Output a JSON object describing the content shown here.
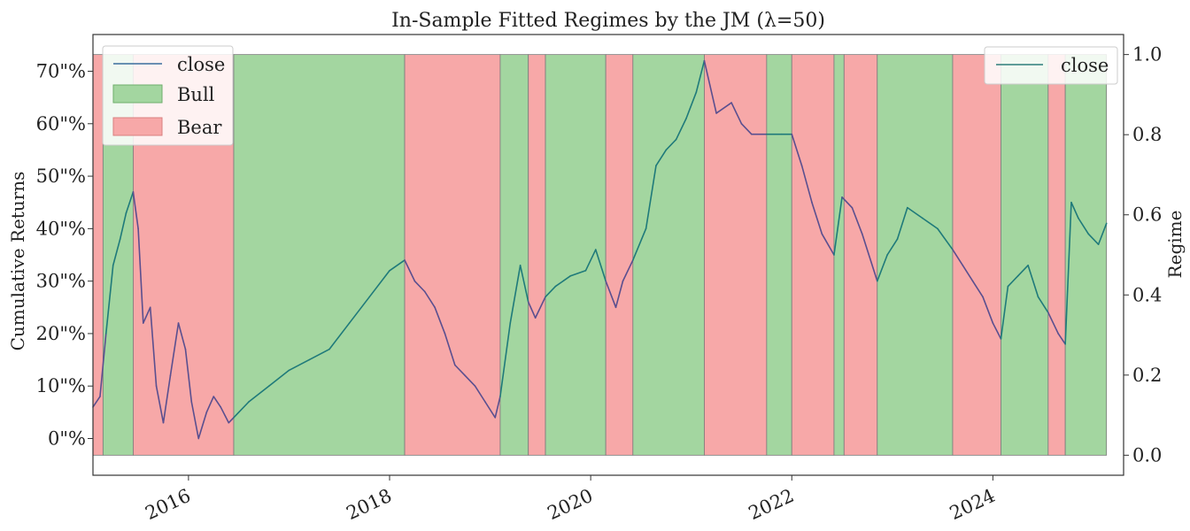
{
  "chart_data": {
    "type": "line",
    "title": "In-Sample Fitted Regimes by the JM (λ=50)",
    "xlabel": "",
    "ylabel": "Cumulative Returns",
    "ylabel_right": "Regime",
    "xlim": [
      2015.05,
      2025.3
    ],
    "ylim": [
      -0.07,
      0.77
    ],
    "ylim_right": [
      -0.05,
      1.05
    ],
    "x_ticks": [
      2016,
      2018,
      2020,
      2022,
      2024
    ],
    "x_tick_labels": [
      "2016",
      "2018",
      "2020",
      "2022",
      "2024"
    ],
    "y_ticks": [
      0.0,
      0.1,
      0.2,
      0.3,
      0.4,
      0.5,
      0.6,
      0.7
    ],
    "y_tick_labels": [
      "0\"%",
      "10\"%",
      "20\"%",
      "30\"%",
      "40\"%",
      "50\"%",
      "60\"%",
      "70\"%"
    ],
    "y_right_ticks": [
      0.0,
      0.2,
      0.4,
      0.6,
      0.8,
      1.0
    ],
    "y_right_tick_labels": [
      "0.0",
      "0.2",
      "0.4",
      "0.6",
      "0.8",
      "1.0"
    ],
    "legend_left": {
      "placement": "top-left",
      "entries": [
        {
          "label": "close",
          "kind": "line",
          "color": "#3a6e9e"
        },
        {
          "label": "Bull",
          "kind": "patch",
          "color": "#a3d6a0"
        },
        {
          "label": "Bear",
          "kind": "patch",
          "color": "#f7a8a8"
        }
      ]
    },
    "legend_right": {
      "placement": "top-right",
      "entries": [
        {
          "label": "close",
          "kind": "line",
          "color": "#2e7d7a"
        }
      ]
    },
    "colors": {
      "bull_fill": "#a3d6a0",
      "bear_fill": "#f7a8a8",
      "bull_line": "#1f7a7a",
      "bear_line": "#5a4f8f",
      "regime_edge": "#7a7a7a"
    },
    "regimes": [
      {
        "start": 2015.05,
        "end": 2015.15,
        "regime": "Bear"
      },
      {
        "start": 2015.15,
        "end": 2015.45,
        "regime": "Bull"
      },
      {
        "start": 2015.45,
        "end": 2016.45,
        "regime": "Bear"
      },
      {
        "start": 2016.45,
        "end": 2018.15,
        "regime": "Bull"
      },
      {
        "start": 2018.15,
        "end": 2019.1,
        "regime": "Bear"
      },
      {
        "start": 2019.1,
        "end": 2019.38,
        "regime": "Bull"
      },
      {
        "start": 2019.38,
        "end": 2019.55,
        "regime": "Bear"
      },
      {
        "start": 2019.55,
        "end": 2020.15,
        "regime": "Bull"
      },
      {
        "start": 2020.15,
        "end": 2020.42,
        "regime": "Bear"
      },
      {
        "start": 2020.42,
        "end": 2021.13,
        "regime": "Bull"
      },
      {
        "start": 2021.13,
        "end": 2021.75,
        "regime": "Bear"
      },
      {
        "start": 2021.75,
        "end": 2022.0,
        "regime": "Bull"
      },
      {
        "start": 2022.0,
        "end": 2022.42,
        "regime": "Bear"
      },
      {
        "start": 2022.42,
        "end": 2022.52,
        "regime": "Bull"
      },
      {
        "start": 2022.52,
        "end": 2022.85,
        "regime": "Bear"
      },
      {
        "start": 2022.85,
        "end": 2023.6,
        "regime": "Bull"
      },
      {
        "start": 2023.6,
        "end": 2024.08,
        "regime": "Bear"
      },
      {
        "start": 2024.08,
        "end": 2024.55,
        "regime": "Bull"
      },
      {
        "start": 2024.55,
        "end": 2024.72,
        "regime": "Bear"
      },
      {
        "start": 2024.72,
        "end": 2025.13,
        "regime": "Bull"
      }
    ],
    "series": [
      {
        "name": "close",
        "x": [
          2015.05,
          2015.12,
          2015.18,
          2015.25,
          2015.32,
          2015.38,
          2015.45,
          2015.5,
          2015.55,
          2015.62,
          2015.68,
          2015.75,
          2015.82,
          2015.9,
          2015.97,
          2016.03,
          2016.1,
          2016.18,
          2016.25,
          2016.32,
          2016.4,
          2016.45,
          2016.6,
          2016.8,
          2017.0,
          2017.2,
          2017.4,
          2017.6,
          2017.8,
          2018.0,
          2018.15,
          2018.25,
          2018.35,
          2018.45,
          2018.55,
          2018.65,
          2018.75,
          2018.85,
          2018.95,
          2019.05,
          2019.1,
          2019.2,
          2019.3,
          2019.38,
          2019.45,
          2019.55,
          2019.65,
          2019.8,
          2019.95,
          2020.05,
          2020.15,
          2020.25,
          2020.32,
          2020.42,
          2020.55,
          2020.65,
          2020.75,
          2020.85,
          2020.95,
          2021.05,
          2021.13,
          2021.25,
          2021.4,
          2021.5,
          2021.6,
          2021.75,
          2021.9,
          2022.0,
          2022.1,
          2022.2,
          2022.3,
          2022.42,
          2022.5,
          2022.6,
          2022.7,
          2022.85,
          2022.95,
          2023.05,
          2023.15,
          2023.3,
          2023.45,
          2023.6,
          2023.7,
          2023.8,
          2023.9,
          2024.0,
          2024.08,
          2024.15,
          2024.25,
          2024.35,
          2024.45,
          2024.55,
          2024.65,
          2024.72,
          2024.78,
          2024.85,
          2024.95,
          2025.05,
          2025.13
        ],
        "y": [
          0.06,
          0.08,
          0.2,
          0.33,
          0.38,
          0.43,
          0.47,
          0.4,
          0.22,
          0.25,
          0.1,
          0.03,
          0.12,
          0.22,
          0.17,
          0.07,
          0.0,
          0.05,
          0.08,
          0.06,
          0.03,
          0.04,
          0.07,
          0.1,
          0.13,
          0.15,
          0.17,
          0.22,
          0.27,
          0.32,
          0.34,
          0.3,
          0.28,
          0.25,
          0.2,
          0.14,
          0.12,
          0.1,
          0.07,
          0.04,
          0.08,
          0.22,
          0.33,
          0.26,
          0.23,
          0.27,
          0.29,
          0.31,
          0.32,
          0.36,
          0.3,
          0.25,
          0.3,
          0.34,
          0.4,
          0.52,
          0.55,
          0.57,
          0.61,
          0.66,
          0.72,
          0.62,
          0.64,
          0.6,
          0.58,
          0.58,
          0.58,
          0.58,
          0.52,
          0.45,
          0.39,
          0.35,
          0.46,
          0.44,
          0.39,
          0.3,
          0.35,
          0.38,
          0.44,
          0.42,
          0.4,
          0.36,
          0.33,
          0.3,
          0.27,
          0.22,
          0.19,
          0.29,
          0.31,
          0.33,
          0.27,
          0.24,
          0.2,
          0.18,
          0.45,
          0.42,
          0.39,
          0.37,
          0.41
        ]
      }
    ]
  }
}
